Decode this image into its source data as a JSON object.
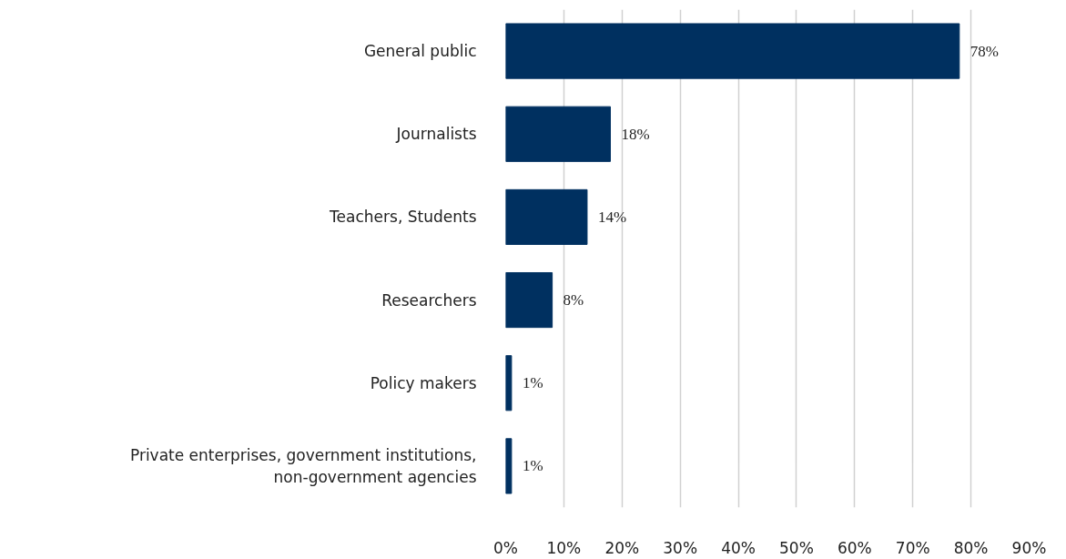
{
  "chart_data": {
    "type": "bar",
    "orientation": "horizontal",
    "categories": [
      "General public",
      "Journalists",
      "Teachers, Students",
      "Researchers",
      "Policy makers",
      "Private enterprises, government institutions, non-government agencies"
    ],
    "values": [
      78,
      18,
      14,
      8,
      1,
      1
    ],
    "value_labels": [
      "78%",
      "18%",
      "14%",
      "8%",
      "1%",
      "1%"
    ],
    "color": "#003060",
    "xlim": [
      0,
      90
    ],
    "xticks": [
      {
        "value": 0,
        "label": "0%"
      },
      {
        "value": 10,
        "label": "10%"
      },
      {
        "value": 20,
        "label": "20%"
      },
      {
        "value": 30,
        "label": "30%"
      },
      {
        "value": 40,
        "label": "40%"
      },
      {
        "value": 50,
        "label": "50%"
      },
      {
        "value": 60,
        "label": "60%"
      },
      {
        "value": 70,
        "label": "70%"
      },
      {
        "value": 80,
        "label": "80%"
      },
      {
        "value": 90,
        "label": "90%"
      }
    ],
    "grid": "x"
  }
}
